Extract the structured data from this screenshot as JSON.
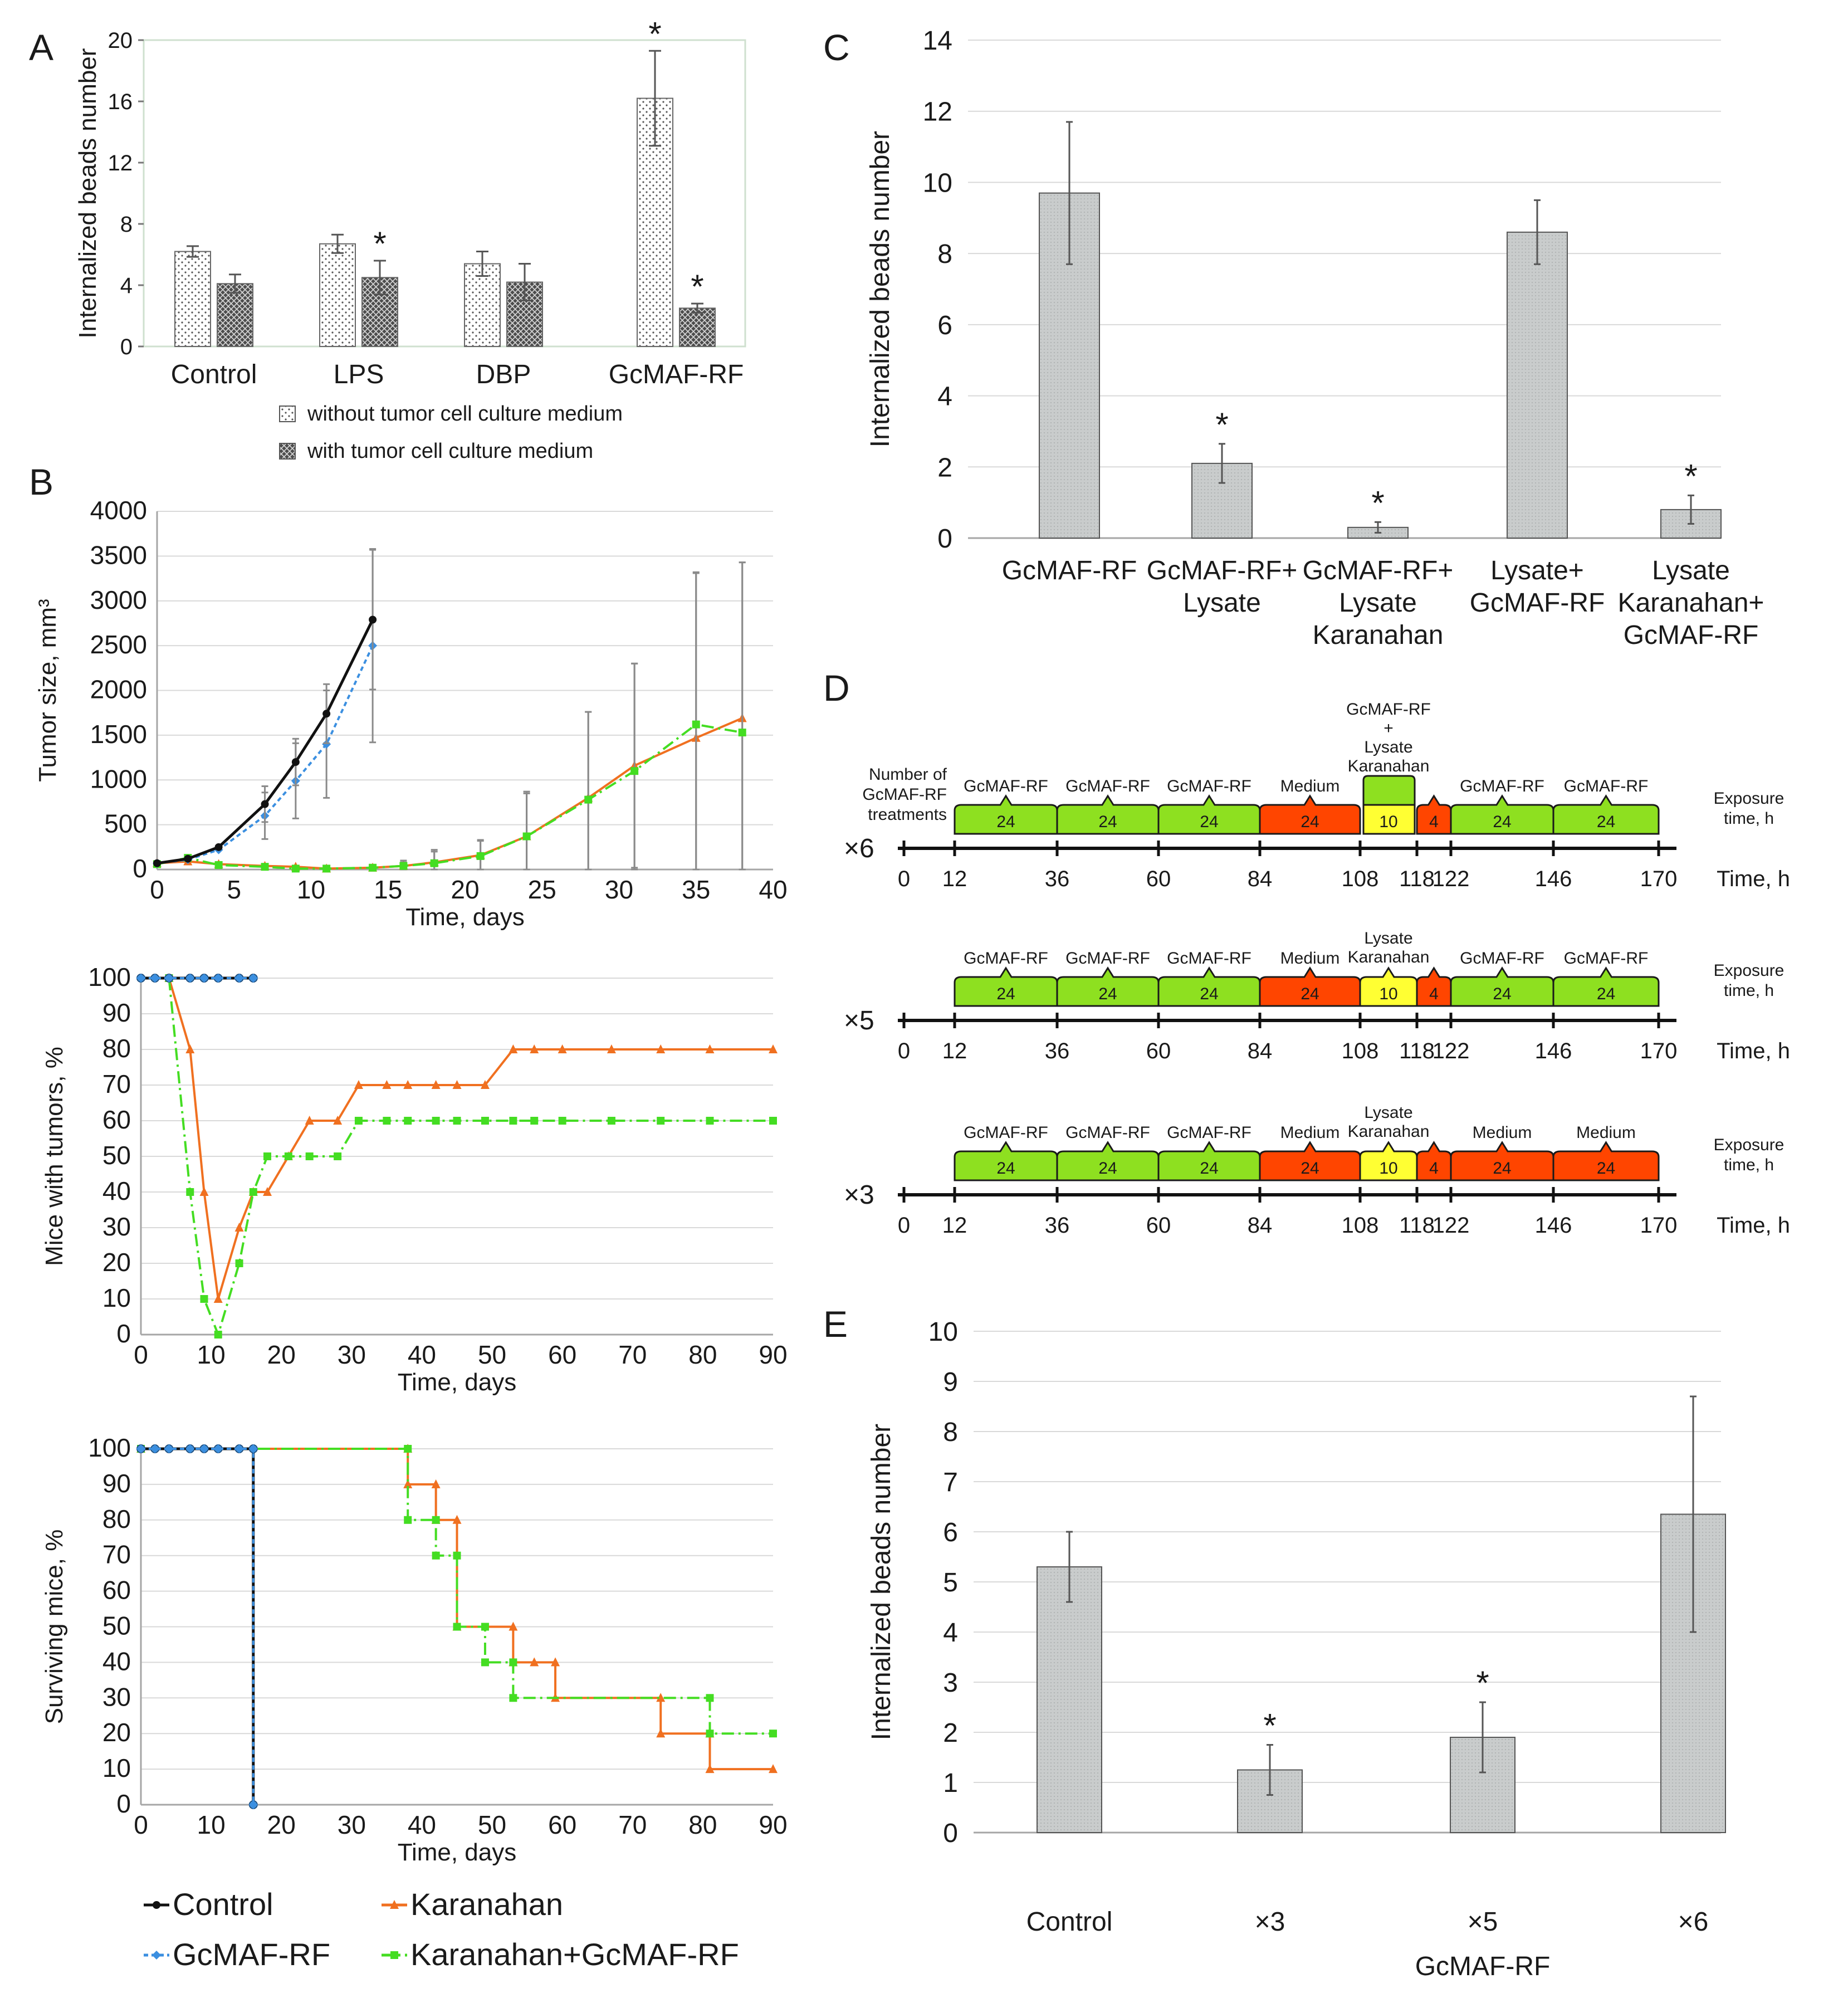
{
  "panels": {
    "A": "A",
    "B": "B",
    "C": "C",
    "D": "D",
    "E": "E"
  },
  "colors": {
    "control": "#111111",
    "gcmaf": "#3b8fe0",
    "karanahan": "#f07020",
    "combo": "#44dd22",
    "bar_gray": "#c9cccc",
    "green_seg": "#8ee020",
    "red_seg": "#ff4500",
    "yellow_seg": "#ffff33"
  },
  "legend_B": {
    "control": "Control",
    "karanahan": "Karanahan",
    "gcmaf": "GcMAF-RF",
    "combo": "Karanahan+GcMAF-RF"
  },
  "chart_data": [
    {
      "id": "A",
      "type": "bar",
      "title": "",
      "ylabel": "Internalized beads number",
      "ylim": [
        0,
        20
      ],
      "yticks": [
        "0",
        "4",
        "8",
        "12",
        "16",
        "20"
      ],
      "categories": [
        "Control",
        "LPS",
        "DBP",
        "GcMAF-RF"
      ],
      "series": [
        {
          "name": "without tumor cell culture medium",
          "values": [
            6.2,
            6.7,
            5.4,
            16.2
          ],
          "err": [
            0.35,
            0.6,
            0.8,
            3.1
          ],
          "stars": [
            "",
            "",
            "",
            "*"
          ]
        },
        {
          "name": "with tumor cell culture medium",
          "values": [
            4.1,
            4.5,
            4.2,
            2.5
          ],
          "err": [
            0.6,
            1.1,
            1.2,
            0.3
          ],
          "stars": [
            "",
            "*",
            "",
            "*"
          ]
        }
      ]
    },
    {
      "id": "B1",
      "type": "line",
      "ylabel": "Tumor size, mm³",
      "xlabel": "Time, days",
      "xlim": [
        0,
        40
      ],
      "ylim": [
        0,
        4000
      ],
      "xticks": [
        "0",
        "5",
        "10",
        "15",
        "20",
        "25",
        "30",
        "35",
        "40"
      ],
      "yticks": [
        "0",
        "500",
        "1000",
        "1500",
        "2000",
        "2500",
        "3000",
        "3500",
        "4000"
      ],
      "series": [
        {
          "name": "Control",
          "x": [
            0,
            2,
            4,
            7,
            9,
            11,
            14
          ],
          "y": [
            70,
            120,
            250,
            730,
            1200,
            1740,
            2790
          ],
          "err": [
            0,
            0,
            0,
            200,
            260,
            330,
            780
          ]
        },
        {
          "name": "GcMAF-RF",
          "x": [
            0,
            2,
            4,
            7,
            9,
            11,
            14
          ],
          "y": [
            70,
            110,
            220,
            600,
            990,
            1400,
            2500
          ],
          "err": [
            0,
            0,
            0,
            260,
            420,
            600,
            1080
          ]
        },
        {
          "name": "Karanahan",
          "x": [
            0,
            2,
            4,
            7,
            9,
            11,
            14,
            16,
            18,
            21,
            24,
            28,
            31,
            35,
            38
          ],
          "y": [
            70,
            90,
            60,
            40,
            30,
            10,
            20,
            40,
            80,
            160,
            370,
            800,
            1160,
            1470,
            1690
          ],
          "err": [
            0,
            0,
            0,
            0,
            0,
            0,
            0,
            60,
            120,
            160,
            480,
            960,
            1140,
            1840,
            1740
          ]
        },
        {
          "name": "Karanahan+GcMAF-RF",
          "x": [
            0,
            2,
            4,
            7,
            9,
            11,
            14,
            16,
            18,
            21,
            24,
            28,
            31,
            35,
            38
          ],
          "y": [
            60,
            130,
            50,
            30,
            10,
            10,
            20,
            40,
            70,
            150,
            370,
            780,
            1100,
            1620,
            1530
          ],
          "err": [
            0,
            0,
            0,
            0,
            0,
            0,
            0,
            40,
            150,
            180,
            500,
            980,
            1200,
            1700,
            1900
          ]
        }
      ]
    },
    {
      "id": "B2",
      "type": "line",
      "ylabel": "Mice with tumors, %",
      "xlabel": "Time, days",
      "xlim": [
        0,
        90
      ],
      "ylim": [
        0,
        100
      ],
      "xticks": [
        "0",
        "10",
        "20",
        "30",
        "40",
        "50",
        "60",
        "70",
        "80",
        "90"
      ],
      "yticks": [
        "0",
        "10",
        "20",
        "30",
        "40",
        "50",
        "60",
        "70",
        "80",
        "90",
        "100"
      ],
      "series": [
        {
          "name": "Control",
          "x": [
            0,
            2,
            4,
            7,
            9,
            11,
            14,
            16
          ],
          "y": [
            100,
            100,
            100,
            100,
            100,
            100,
            100,
            100
          ]
        },
        {
          "name": "GcMAF-RF",
          "x": [
            0,
            2,
            4,
            7,
            9,
            11,
            14,
            16
          ],
          "y": [
            100,
            100,
            100,
            100,
            100,
            100,
            100,
            100
          ]
        },
        {
          "name": "Karanahan",
          "x": [
            4,
            7,
            9,
            11,
            14,
            16,
            18,
            21,
            24,
            28,
            31,
            35,
            38,
            42,
            45,
            49,
            53,
            56,
            60,
            67,
            74,
            81,
            90
          ],
          "y": [
            100,
            80,
            40,
            10,
            30,
            40,
            40,
            50,
            60,
            60,
            70,
            70,
            70,
            70,
            70,
            70,
            80,
            80,
            80,
            80,
            80,
            80,
            80
          ]
        },
        {
          "name": "Karanahan+GcMAF-RF",
          "x": [
            4,
            7,
            9,
            11,
            14,
            16,
            18,
            21,
            24,
            28,
            31,
            35,
            38,
            42,
            45,
            49,
            53,
            56,
            60,
            67,
            74,
            81,
            90
          ],
          "y": [
            100,
            40,
            10,
            0,
            20,
            40,
            50,
            50,
            50,
            50,
            60,
            60,
            60,
            60,
            60,
            60,
            60,
            60,
            60,
            60,
            60,
            60,
            60
          ]
        }
      ]
    },
    {
      "id": "B3",
      "type": "line",
      "ylabel": "Surviving mice, %",
      "xlabel": "Time, days",
      "xlim": [
        0,
        90
      ],
      "ylim": [
        0,
        100
      ],
      "xticks": [
        "0",
        "10",
        "20",
        "30",
        "40",
        "50",
        "60",
        "70",
        "80",
        "90"
      ],
      "yticks": [
        "0",
        "10",
        "20",
        "30",
        "40",
        "50",
        "60",
        "70",
        "80",
        "90",
        "100"
      ],
      "series": [
        {
          "name": "Control",
          "x": [
            0,
            2,
            4,
            7,
            9,
            11,
            14,
            16,
            16
          ],
          "y": [
            100,
            100,
            100,
            100,
            100,
            100,
            100,
            100,
            0
          ]
        },
        {
          "name": "GcMAF-RF",
          "x": [
            0,
            2,
            4,
            7,
            9,
            11,
            14,
            16,
            16
          ],
          "y": [
            100,
            100,
            100,
            100,
            100,
            100,
            100,
            100,
            0
          ]
        },
        {
          "name": "Karanahan",
          "x": [
            0,
            38,
            38,
            42,
            42,
            45,
            45,
            53,
            53,
            56,
            59,
            59,
            74,
            74,
            81,
            81,
            90
          ],
          "y": [
            100,
            100,
            90,
            90,
            80,
            80,
            50,
            50,
            40,
            40,
            40,
            30,
            30,
            20,
            20,
            10,
            10
          ]
        },
        {
          "name": "Karanahan+GcMAF-RF",
          "x": [
            0,
            38,
            38,
            42,
            42,
            45,
            45,
            49,
            49,
            53,
            53,
            81,
            81,
            90
          ],
          "y": [
            100,
            100,
            80,
            80,
            70,
            70,
            50,
            50,
            40,
            40,
            30,
            30,
            20,
            20
          ]
        }
      ]
    },
    {
      "id": "C",
      "type": "bar",
      "ylabel": "Internalized beads number",
      "ylim": [
        0,
        14
      ],
      "yticks": [
        "0",
        "2",
        "4",
        "6",
        "8",
        "10",
        "12",
        "14"
      ],
      "categories": [
        [
          "GcMAF-RF"
        ],
        [
          "GcMAF-RF+",
          "Lysate"
        ],
        [
          "GcMAF-RF+",
          "Lysate",
          "Karanahan"
        ],
        [
          "Lysate+",
          "GcMAF-RF"
        ],
        [
          "Lysate",
          "Karanahan+",
          "GcMAF-RF"
        ]
      ],
      "values": [
        9.7,
        2.1,
        0.3,
        8.6,
        0.8
      ],
      "err": [
        2.0,
        0.55,
        0.15,
        0.9,
        0.4
      ],
      "stars": [
        "",
        "*",
        "*",
        "",
        "*"
      ]
    },
    {
      "id": "D",
      "type": "diagram",
      "left_label": [
        "Number of",
        "GcMAF-RF",
        "treatments"
      ],
      "exposure_label": [
        "Exposure",
        "time, h"
      ],
      "time_label": "Time, h",
      "ticks": [
        "0",
        "12",
        "36",
        "60",
        "84",
        "108",
        "118",
        "122",
        "146",
        "170"
      ],
      "rows": [
        {
          "mult": "×6",
          "labels": [
            "GcMAF-RF",
            "GcMAF-RF",
            "GcMAF-RF",
            "Medium",
            [
              "GcMAF-RF",
              "+",
              "Lysate",
              "Karanahan"
            ],
            "",
            "GcMAF-RF",
            "GcMAF-RF"
          ],
          "segments": [
            {
              "v": "24",
              "c": "green"
            },
            {
              "v": "24",
              "c": "green"
            },
            {
              "v": "24",
              "c": "green"
            },
            {
              "v": "24",
              "c": "red"
            },
            {
              "v": "10",
              "c": "yellow_green"
            },
            {
              "v": "4",
              "c": "red"
            },
            {
              "v": "24",
              "c": "green"
            },
            {
              "v": "24",
              "c": "green"
            }
          ]
        },
        {
          "mult": "×5",
          "labels": [
            "GcMAF-RF",
            "GcMAF-RF",
            "GcMAF-RF",
            "Medium",
            [
              "Lysate",
              "Karanahan"
            ],
            "",
            "GcMAF-RF",
            "GcMAF-RF"
          ],
          "segments": [
            {
              "v": "24",
              "c": "green"
            },
            {
              "v": "24",
              "c": "green"
            },
            {
              "v": "24",
              "c": "green"
            },
            {
              "v": "24",
              "c": "red"
            },
            {
              "v": "10",
              "c": "yellow"
            },
            {
              "v": "4",
              "c": "red"
            },
            {
              "v": "24",
              "c": "green"
            },
            {
              "v": "24",
              "c": "green"
            }
          ]
        },
        {
          "mult": "×3",
          "labels": [
            "GcMAF-RF",
            "GcMAF-RF",
            "GcMAF-RF",
            "Medium",
            [
              "Lysate",
              "Karanahan"
            ],
            "",
            "Medium",
            "Medium"
          ],
          "segments": [
            {
              "v": "24",
              "c": "green"
            },
            {
              "v": "24",
              "c": "green"
            },
            {
              "v": "24",
              "c": "green"
            },
            {
              "v": "24",
              "c": "red"
            },
            {
              "v": "10",
              "c": "yellow"
            },
            {
              "v": "4",
              "c": "red"
            },
            {
              "v": "24",
              "c": "red"
            },
            {
              "v": "24",
              "c": "red"
            }
          ]
        }
      ]
    },
    {
      "id": "E",
      "type": "bar",
      "ylabel": "Internalized beads number",
      "xlabel": "GcMAF-RF",
      "ylim": [
        0,
        10
      ],
      "yticks": [
        "0",
        "1",
        "2",
        "3",
        "4",
        "5",
        "6",
        "7",
        "8",
        "9",
        "10"
      ],
      "categories": [
        "Control",
        "×3",
        "×5",
        "×6"
      ],
      "values": [
        5.3,
        1.25,
        1.9,
        6.35
      ],
      "err": [
        0.7,
        0.5,
        0.7,
        2.35
      ],
      "stars": [
        "",
        "*",
        "*",
        ""
      ]
    }
  ]
}
